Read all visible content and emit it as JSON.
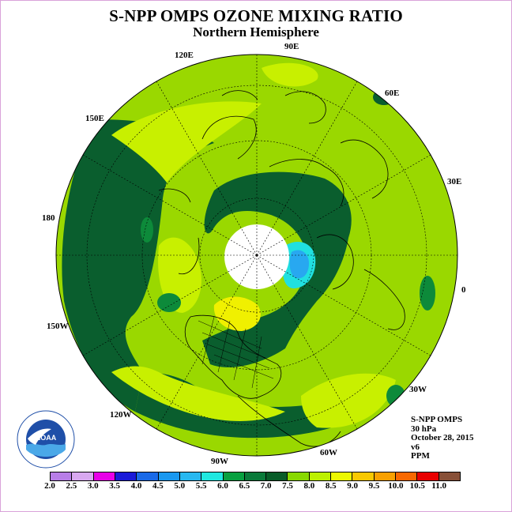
{
  "title": "S-NPP OMPS OZONE MIXING RATIO",
  "subtitle": "Northern Hemisphere",
  "longitude_labels": [
    "90E",
    "60E",
    "30E",
    "0",
    "30W",
    "60W",
    "90W",
    "120W",
    "150W",
    "180",
    "150E",
    "120E"
  ],
  "info": {
    "instrument": "S-NPP OMPS",
    "level": "30 hPa",
    "date": "October 28, 2015",
    "version": "v6",
    "units": "PPM"
  },
  "colorbar": {
    "ticks": [
      "2.0",
      "2.5",
      "3.0",
      "3.5",
      "4.0",
      "4.5",
      "5.0",
      "5.5",
      "6.0",
      "6.5",
      "7.0",
      "7.5",
      "8.0",
      "8.5",
      "9.0",
      "9.5",
      "10.0",
      "10.5",
      "11.0"
    ],
    "colors": [
      "#b87ee8",
      "#d8a8f0",
      "#e800e8",
      "#1a1ad8",
      "#1a6ae8",
      "#1a98f0",
      "#28b8f0",
      "#20e8e0",
      "#08a040",
      "#0a7a3a",
      "#085c28",
      "#88d800",
      "#bcf000",
      "#ecf800",
      "#f8c800",
      "#f8a000",
      "#f86800",
      "#e80000",
      "#885038"
    ]
  },
  "logo": {
    "text": "NOAA",
    "ring_text": "NATIONAL OCEANIC AND ATMOSPHERIC ADMINISTRATION · U.S. DEPARTMENT OF COMMERCE"
  },
  "colors": {
    "background_field": "#9ad800",
    "dark_green": "#0a5e2e",
    "medium_green": "#0d8a3a",
    "yellow_green": "#c8f000",
    "yellow": "#f0f000",
    "cyan": "#20e0e0",
    "blue": "#28a8f0"
  }
}
